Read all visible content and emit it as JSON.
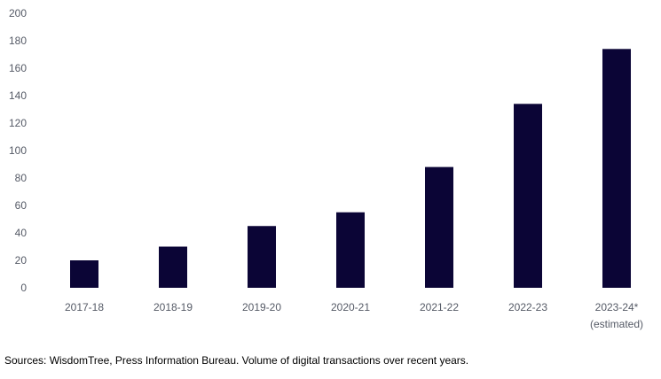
{
  "chart_data": {
    "type": "bar",
    "categories": [
      "2017-18",
      "2018-19",
      "2019-20",
      "2020-21",
      "2021-22",
      "2022-23",
      "2023-24*"
    ],
    "category_sublabels": [
      "",
      "",
      "",
      "",
      "",
      "",
      "(estimated)"
    ],
    "values": [
      20,
      30,
      45,
      55,
      88,
      134,
      174
    ],
    "ylim": [
      0,
      200
    ],
    "yticks": [
      0,
      20,
      40,
      60,
      80,
      100,
      120,
      140,
      160,
      180,
      200
    ],
    "grid": false,
    "bar_color": "#0b0536"
  },
  "source": "Sources: WisdomTree, Press Information Bureau.  Volume of digital transactions over recent years."
}
